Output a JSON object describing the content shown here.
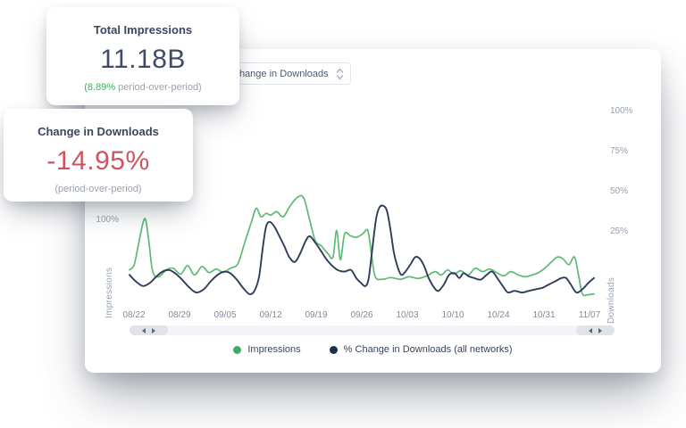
{
  "cards": {
    "impressions": {
      "title": "Total Impressions",
      "value": "11.18B",
      "delta_pct": "(8.89%",
      "delta_label": " period-over-period)"
    },
    "downloads": {
      "title": "Change in Downloads",
      "value": "-14.95%",
      "subtitle": "(period-over-period)"
    }
  },
  "chart": {
    "dropdown": {
      "value": "Change in Downloads"
    },
    "left_axis": {
      "label": "Impressions",
      "tick": "100%"
    },
    "right_axis": {
      "label": "Downloads",
      "ticks": [
        "100%",
        "75%",
        "50%",
        "25%"
      ]
    },
    "x_labels": [
      "08/22",
      "08/29",
      "09/05",
      "09/12",
      "09/19",
      "09/26",
      "10/03",
      "10/10",
      "10/24",
      "10/31",
      "11/07"
    ],
    "legend": [
      {
        "label": "Impressions",
        "color": "#3eae62"
      },
      {
        "label": "% Change in Downloads (all networks)",
        "color": "#1d2f4e"
      }
    ]
  },
  "colors": {
    "accent_green": "#3eae62",
    "accent_red": "#cb5560",
    "line_green": "#5cba74",
    "line_navy": "#2e3d59",
    "text_dark": "#3a4660",
    "text_gray": "#9aa1b0",
    "axis_gray": "#97a0b0"
  },
  "chart_data": {
    "type": "line",
    "title": "",
    "x_axis": {
      "labels": [
        "08/22",
        "08/29",
        "09/05",
        "09/12",
        "09/19",
        "09/26",
        "10/03",
        "10/10",
        "10/24",
        "10/31",
        "11/07"
      ]
    },
    "left_axis": {
      "label": "Impressions",
      "unit": "%",
      "ticks_visible": [
        "100%"
      ]
    },
    "right_axis": {
      "label": "Downloads",
      "unit": "%",
      "ticks_visible": [
        "100%",
        "75%",
        "50%",
        "25%"
      ],
      "range_shown": [
        -15,
        110
      ]
    },
    "legend_position": "bottom",
    "grid": false,
    "series": [
      {
        "name": "Impressions",
        "axis": "left",
        "color": "#5cba74",
        "points": [
          [
            0.0,
            42
          ],
          [
            0.01,
            48
          ],
          [
            0.019,
            71
          ],
          [
            0.029,
            97
          ],
          [
            0.035,
            100
          ],
          [
            0.042,
            74
          ],
          [
            0.05,
            40
          ],
          [
            0.063,
            34
          ],
          [
            0.079,
            42
          ],
          [
            0.094,
            44
          ],
          [
            0.11,
            37
          ],
          [
            0.125,
            47
          ],
          [
            0.14,
            36
          ],
          [
            0.156,
            46
          ],
          [
            0.171,
            39
          ],
          [
            0.187,
            43
          ],
          [
            0.202,
            39
          ],
          [
            0.217,
            44
          ],
          [
            0.233,
            49
          ],
          [
            0.248,
            74
          ],
          [
            0.263,
            99
          ],
          [
            0.273,
            114
          ],
          [
            0.283,
            104
          ],
          [
            0.294,
            108
          ],
          [
            0.304,
            106
          ],
          [
            0.317,
            110
          ],
          [
            0.331,
            104
          ],
          [
            0.346,
            117
          ],
          [
            0.362,
            127
          ],
          [
            0.375,
            126
          ],
          [
            0.388,
            100
          ],
          [
            0.4,
            76
          ],
          [
            0.413,
            70
          ],
          [
            0.427,
            61
          ],
          [
            0.438,
            57
          ],
          [
            0.446,
            88
          ],
          [
            0.454,
            54
          ],
          [
            0.463,
            84
          ],
          [
            0.475,
            82
          ],
          [
            0.488,
            80
          ],
          [
            0.502,
            84
          ],
          [
            0.513,
            88
          ],
          [
            0.521,
            60
          ],
          [
            0.529,
            34
          ],
          [
            0.544,
            31
          ],
          [
            0.563,
            33
          ],
          [
            0.583,
            31
          ],
          [
            0.602,
            34
          ],
          [
            0.621,
            32
          ],
          [
            0.64,
            35
          ],
          [
            0.658,
            40
          ],
          [
            0.671,
            36
          ],
          [
            0.685,
            42
          ],
          [
            0.698,
            37
          ],
          [
            0.713,
            41
          ],
          [
            0.729,
            36
          ],
          [
            0.744,
            44
          ],
          [
            0.76,
            40
          ],
          [
            0.775,
            43
          ],
          [
            0.79,
            39
          ],
          [
            0.806,
            35
          ],
          [
            0.821,
            40
          ],
          [
            0.837,
            36
          ],
          [
            0.852,
            34
          ],
          [
            0.867,
            36
          ],
          [
            0.881,
            39
          ],
          [
            0.894,
            44
          ],
          [
            0.908,
            51
          ],
          [
            0.921,
            57
          ],
          [
            0.933,
            55
          ],
          [
            0.946,
            48
          ],
          [
            0.958,
            57
          ],
          [
            0.967,
            35
          ],
          [
            0.975,
            14
          ],
          [
            0.987,
            13
          ],
          [
            1.0,
            14
          ]
        ]
      },
      {
        "name": "% Change in Downloads (all networks)",
        "axis": "right",
        "color": "#2e3d59",
        "points": [
          [
            0.0,
            1
          ],
          [
            0.013,
            -3
          ],
          [
            0.029,
            -6
          ],
          [
            0.044,
            -4
          ],
          [
            0.058,
            0
          ],
          [
            0.071,
            3
          ],
          [
            0.085,
            4
          ],
          [
            0.098,
            2
          ],
          [
            0.113,
            -2
          ],
          [
            0.129,
            -7
          ],
          [
            0.144,
            -10
          ],
          [
            0.16,
            -8
          ],
          [
            0.175,
            -3
          ],
          [
            0.19,
            1
          ],
          [
            0.204,
            3
          ],
          [
            0.217,
            2
          ],
          [
            0.231,
            -2
          ],
          [
            0.244,
            -7
          ],
          [
            0.258,
            -11
          ],
          [
            0.269,
            -9
          ],
          [
            0.279,
            0
          ],
          [
            0.287,
            18
          ],
          [
            0.294,
            31
          ],
          [
            0.302,
            34
          ],
          [
            0.312,
            31
          ],
          [
            0.321,
            26
          ],
          [
            0.333,
            19
          ],
          [
            0.344,
            12
          ],
          [
            0.356,
            9
          ],
          [
            0.367,
            14
          ],
          [
            0.379,
            22
          ],
          [
            0.388,
            25
          ],
          [
            0.4,
            21
          ],
          [
            0.412,
            16
          ],
          [
            0.423,
            11
          ],
          [
            0.435,
            7
          ],
          [
            0.448,
            4
          ],
          [
            0.463,
            3
          ],
          [
            0.477,
            4
          ],
          [
            0.488,
            -1
          ],
          [
            0.498,
            -4
          ],
          [
            0.508,
            -6
          ],
          [
            0.515,
            -1
          ],
          [
            0.523,
            18
          ],
          [
            0.531,
            36
          ],
          [
            0.538,
            43
          ],
          [
            0.546,
            44
          ],
          [
            0.554,
            41
          ],
          [
            0.562,
            29
          ],
          [
            0.569,
            15
          ],
          [
            0.577,
            6
          ],
          [
            0.585,
            1
          ],
          [
            0.594,
            3
          ],
          [
            0.606,
            8
          ],
          [
            0.615,
            12
          ],
          [
            0.625,
            11
          ],
          [
            0.635,
            6
          ],
          [
            0.644,
            -1
          ],
          [
            0.656,
            -7
          ],
          [
            0.665,
            -9
          ],
          [
            0.677,
            -5
          ],
          [
            0.688,
            1
          ],
          [
            0.7,
            2
          ],
          [
            0.71,
            -1
          ],
          [
            0.719,
            2
          ],
          [
            0.731,
            0
          ],
          [
            0.742,
            -1
          ],
          [
            0.756,
            -2
          ],
          [
            0.769,
            1
          ],
          [
            0.781,
            3
          ],
          [
            0.794,
            -2
          ],
          [
            0.806,
            -7
          ],
          [
            0.815,
            -10
          ],
          [
            0.829,
            -9
          ],
          [
            0.845,
            -10
          ],
          [
            0.86,
            -9
          ],
          [
            0.875,
            -8
          ],
          [
            0.89,
            -7
          ],
          [
            0.903,
            -5
          ],
          [
            0.917,
            -3
          ],
          [
            0.93,
            -1
          ],
          [
            0.94,
            -1
          ],
          [
            0.95,
            -5
          ],
          [
            0.962,
            -10
          ],
          [
            0.975,
            -8
          ],
          [
            0.988,
            -4
          ],
          [
            1.0,
            -1
          ]
        ]
      }
    ]
  }
}
